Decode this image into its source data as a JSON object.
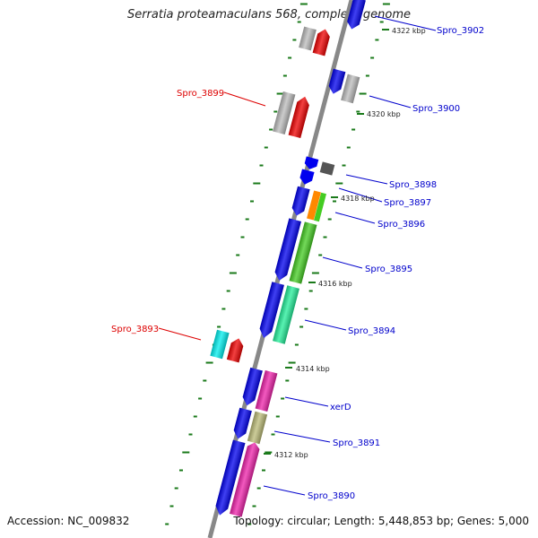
{
  "title": "Serratia proteamaculans 568, complete genome",
  "footer": {
    "accession": "Accession: NC_009832",
    "topology": "Topology: circular; Length: 5,448,853 bp; Genes: 5,000"
  },
  "colors": {
    "backbone": "#888888",
    "tick": "#1a7a1a",
    "forward_label": "#0000cc",
    "reverse_label": "#dd0000",
    "gene_blue": "#0000ee",
    "gene_red": "#ee0000",
    "gene_gray": "#bbbbbb",
    "gene_darkgray": "#555555",
    "gene_green": "#44cc22",
    "gene_orange": "#ff8800",
    "gene_seagreen": "#22ee99",
    "gene_cyan": "#00eeee",
    "gene_pink": "#ee22aa",
    "gene_khaki": "#bbbb77"
  },
  "kbp_labels": [
    "4322 kbp",
    "4320 kbp",
    "4318 kbp",
    "4316 kbp",
    "4314 kbp",
    "4312 kbp"
  ],
  "gene_labels": [
    {
      "name": "Spro_3902",
      "side": "right"
    },
    {
      "name": "Spro_3900",
      "side": "right"
    },
    {
      "name": "Spro_3899",
      "side": "left"
    },
    {
      "name": "Spro_3898",
      "side": "right"
    },
    {
      "name": "Spro_3897",
      "side": "right"
    },
    {
      "name": "Spro_3896",
      "side": "right"
    },
    {
      "name": "Spro_3895",
      "side": "right"
    },
    {
      "name": "Spro_3894",
      "side": "right"
    },
    {
      "name": "Spro_3893",
      "side": "left"
    },
    {
      "name": "xerD",
      "side": "right"
    },
    {
      "name": "Spro_3891",
      "side": "right"
    },
    {
      "name": "Spro_3890",
      "side": "right"
    }
  ]
}
